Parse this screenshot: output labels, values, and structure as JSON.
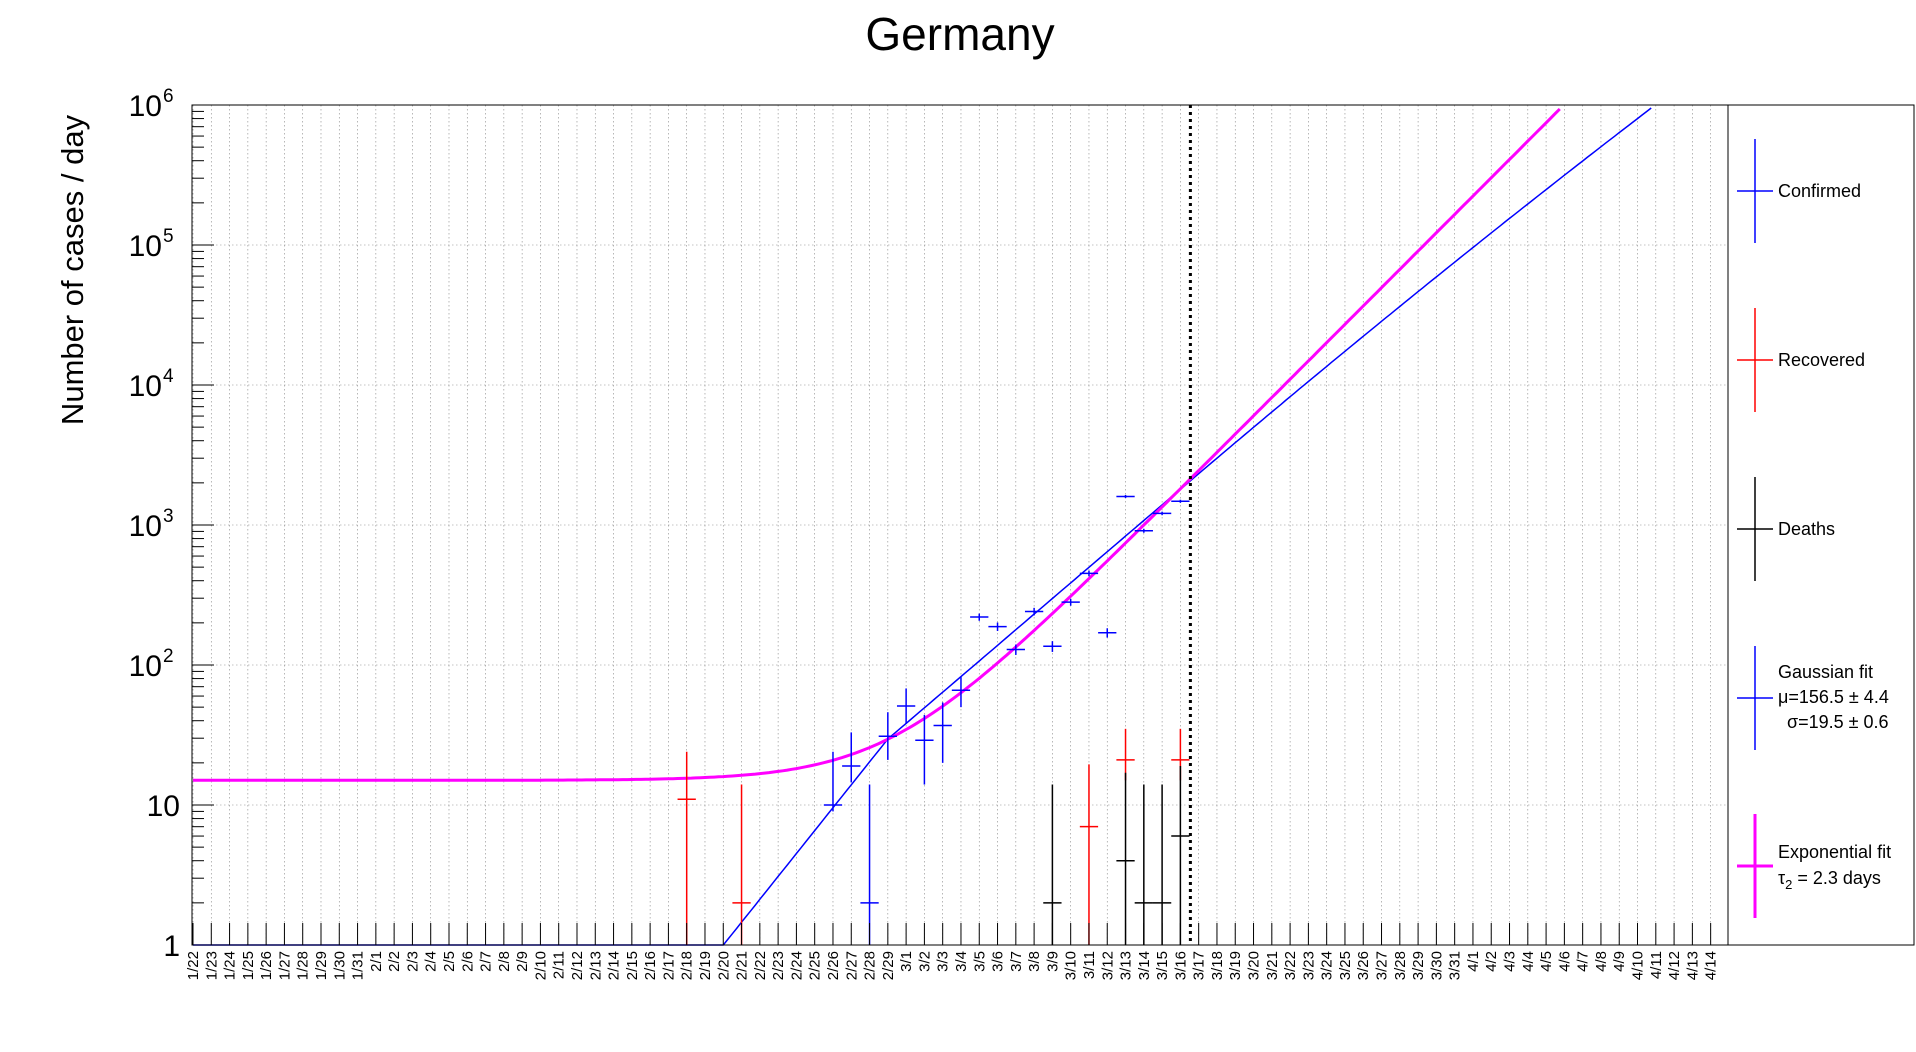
{
  "chart_data": {
    "type": "scatter",
    "title": "Germany",
    "xlabel": "",
    "ylabel": "Number of cases / day",
    "yscale": "log",
    "ylim": [
      1,
      1000000
    ],
    "y_ticks": [
      {
        "value": 1,
        "base": "1",
        "exp": ""
      },
      {
        "value": 10,
        "base": "10",
        "exp": ""
      },
      {
        "value": 100,
        "base": "10",
        "exp": "2"
      },
      {
        "value": 1000,
        "base": "10",
        "exp": "3"
      },
      {
        "value": 10000,
        "base": "10",
        "exp": "4"
      },
      {
        "value": 100000,
        "base": "10",
        "exp": "5"
      },
      {
        "value": 1000000,
        "base": "10",
        "exp": "6"
      }
    ],
    "grid": true,
    "current_date_marker": "3/16",
    "x_dates": [
      "1/22",
      "1/23",
      "1/24",
      "1/25",
      "1/26",
      "1/27",
      "1/28",
      "1/29",
      "1/30",
      "1/31",
      "2/1",
      "2/2",
      "2/3",
      "2/4",
      "2/5",
      "2/6",
      "2/7",
      "2/8",
      "2/9",
      "2/10",
      "2/11",
      "2/12",
      "2/13",
      "2/14",
      "2/15",
      "2/16",
      "2/17",
      "2/18",
      "2/19",
      "2/20",
      "2/21",
      "2/22",
      "2/23",
      "2/24",
      "2/25",
      "2/26",
      "2/27",
      "2/28",
      "2/29",
      "3/1",
      "3/2",
      "3/3",
      "3/4",
      "3/5",
      "3/6",
      "3/7",
      "3/8",
      "3/9",
      "3/10",
      "3/11",
      "3/12",
      "3/13",
      "3/14",
      "3/15",
      "3/16",
      "3/17",
      "3/18",
      "3/19",
      "3/20",
      "3/21",
      "3/22",
      "3/23",
      "3/24",
      "3/25",
      "3/26",
      "3/27",
      "3/28",
      "3/29",
      "3/30",
      "3/31",
      "4/1",
      "4/2",
      "4/3",
      "4/4",
      "4/5",
      "4/6",
      "4/7",
      "4/8",
      "4/9",
      "4/10",
      "4/11",
      "4/12",
      "4/13",
      "4/14"
    ],
    "series": [
      {
        "name": "Confirmed",
        "color": "#0000ff",
        "points": [
          {
            "x": "2/26",
            "y": 10,
            "err_low": 9,
            "err_high": 24
          },
          {
            "x": "2/27",
            "y": 19,
            "err_low": 14.5,
            "err_high": 33
          },
          {
            "x": "2/28",
            "y": 2,
            "err_low": 1,
            "err_high": 14
          },
          {
            "x": "2/29",
            "y": 31,
            "err_low": 21,
            "err_high": 46
          },
          {
            "x": "3/1",
            "y": 51,
            "err_low": 38,
            "err_high": 68
          },
          {
            "x": "3/2",
            "y": 29,
            "err_low": 14,
            "err_high": 44
          },
          {
            "x": "3/3",
            "y": 37,
            "err_low": 20,
            "err_high": 54
          },
          {
            "x": "3/4",
            "y": 66,
            "err_low": 50,
            "err_high": 82
          },
          {
            "x": "3/5",
            "y": 220,
            "err_low": 207,
            "err_high": 233
          },
          {
            "x": "3/6",
            "y": 188,
            "err_low": 175,
            "err_high": 201
          },
          {
            "x": "3/7",
            "y": 129,
            "err_low": 118,
            "err_high": 140
          },
          {
            "x": "3/8",
            "y": 241,
            "err_low": 226,
            "err_high": 256
          },
          {
            "x": "3/9",
            "y": 136,
            "err_low": 124,
            "err_high": 148
          },
          {
            "x": "3/10",
            "y": 281,
            "err_low": 265,
            "err_high": 297
          },
          {
            "x": "3/11",
            "y": 451,
            "err_low": 430,
            "err_high": 472
          },
          {
            "x": "3/12",
            "y": 170,
            "err_low": 157,
            "err_high": 183
          },
          {
            "x": "3/13",
            "y": 1597,
            "err_low": 1557,
            "err_high": 1637
          },
          {
            "x": "3/14",
            "y": 910,
            "err_low": 880,
            "err_high": 940
          },
          {
            "x": "3/15",
            "y": 1210,
            "err_low": 1175,
            "err_high": 1245
          },
          {
            "x": "3/16",
            "y": 1477,
            "err_low": 1439,
            "err_high": 1515
          }
        ]
      },
      {
        "name": "Recovered",
        "color": "#ff0000",
        "points": [
          {
            "x": "2/18",
            "y": 11,
            "err_low": 1,
            "err_high": 24
          },
          {
            "x": "2/21",
            "y": 2,
            "err_low": 1,
            "err_high": 14
          },
          {
            "x": "3/11",
            "y": 7,
            "err_low": 1,
            "err_high": 19.5
          },
          {
            "x": "3/13",
            "y": 21,
            "err_low": 15,
            "err_high": 35
          },
          {
            "x": "3/16",
            "y": 21,
            "err_low": 15,
            "err_high": 35
          }
        ]
      },
      {
        "name": "Deaths",
        "color": "#000000",
        "points": [
          {
            "x": "3/9",
            "y": 2,
            "err_low": 1,
            "err_high": 14
          },
          {
            "x": "3/13",
            "y": 4,
            "err_low": 1,
            "err_high": 17
          },
          {
            "x": "3/14",
            "y": 2,
            "err_low": 1,
            "err_high": 14
          },
          {
            "x": "3/15",
            "y": 2,
            "err_low": 1,
            "err_high": 14
          },
          {
            "x": "3/16",
            "y": 6,
            "err_low": 1,
            "err_high": 19
          }
        ]
      }
    ],
    "fits": [
      {
        "name": "Gaussian fit",
        "label_lines": [
          "Gaussian fit",
          "μ=156.5 ± 4.4",
          "σ=19.5 ± 0.6"
        ],
        "color": "#0000ff",
        "model": "gaussian",
        "mu": 156.5,
        "sigma": 19.5
      },
      {
        "name": "Exponential fit",
        "label_lines": [
          "Exponential fit",
          "τ",
          "2",
          " = 2.3 days"
        ],
        "color": "#ff00ff",
        "model": "exponential",
        "doubling_time_days": 2.3,
        "baseline": 15
      }
    ],
    "legend_position": "right"
  }
}
